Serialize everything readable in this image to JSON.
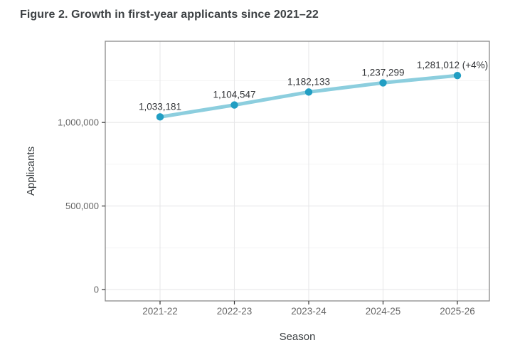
{
  "figure": {
    "title": "Figure 2. Growth in first-year applicants since 2021–22"
  },
  "chart_data": {
    "type": "line",
    "title": "Figure 2. Growth in first-year applicants since 2021–22",
    "xlabel": "Season",
    "ylabel": "Applicants",
    "categories": [
      "2021-22",
      "2022-23",
      "2023-24",
      "2024-25",
      "2025-26"
    ],
    "values": [
      1033181,
      1104547,
      1182133,
      1237299,
      1281012
    ],
    "point_labels": [
      "1,033,181",
      "1,104,547",
      "1,182,133",
      "1,237,299",
      "1,281,012 (+4%)"
    ],
    "ylim": [
      -68000,
      1486000
    ],
    "yticks": [
      {
        "value": 0,
        "label": "0"
      },
      {
        "value": 500000,
        "label": "500,000"
      },
      {
        "value": 1000000,
        "label": "1,000,000"
      }
    ],
    "minor_yticks": [
      250000,
      750000,
      1250000
    ],
    "grid": true,
    "legend": "none",
    "colors": {
      "line": "#8ccede",
      "point": "#219ec3",
      "major_grid": "#e7e7e9",
      "minor_grid": "#f2f2f3",
      "panel_border": "#8a8a8a",
      "panel_bg": "#ffffff",
      "tick_mark": "#333333",
      "tick_label": "#666666",
      "axis_title": "#3c4043",
      "data_label": "#333538",
      "title": "#3c4043"
    }
  }
}
